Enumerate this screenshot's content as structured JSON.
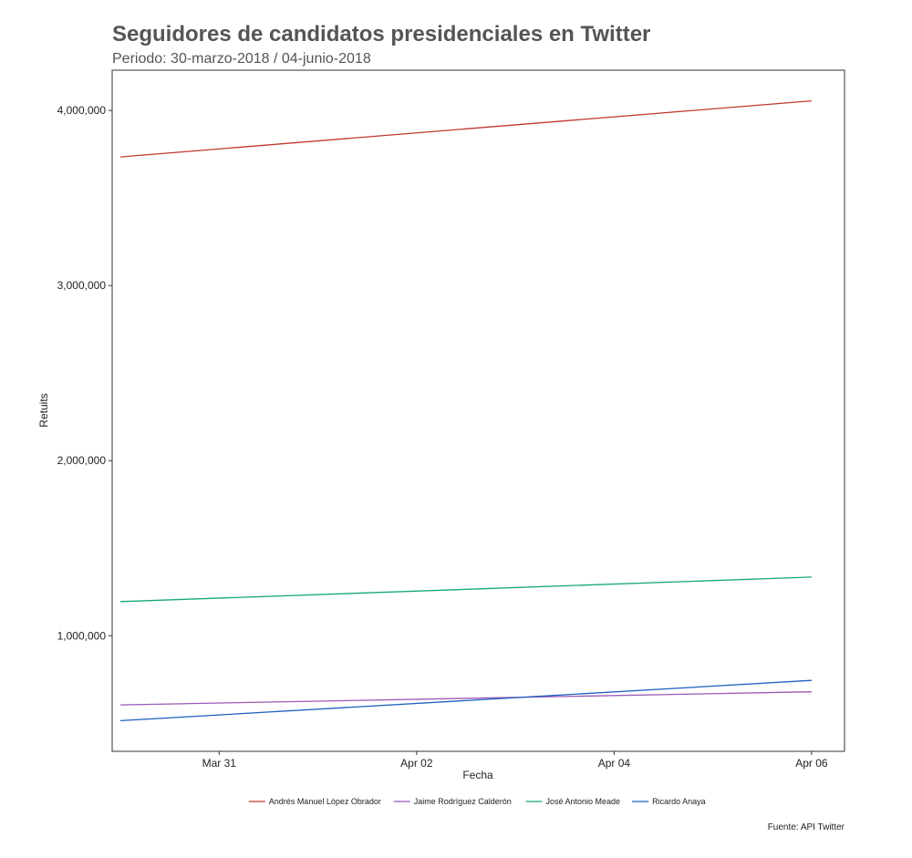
{
  "chart_data": {
    "type": "line",
    "title": "Seguidores de candidatos presidenciales en Twitter",
    "subtitle": "Periodo: 30-marzo-2018 / 04-junio-2018",
    "xlabel": "Fecha",
    "ylabel": "Retuits",
    "caption": "Fuente: API Twitter",
    "x": [
      "2018-03-30",
      "2018-04-06"
    ],
    "xlim": [
      "2018-03-29T22:00",
      "2018-04-06T08:00"
    ],
    "ylim": [
      340000,
      4230000
    ],
    "x_ticks": [
      {
        "date": "2018-03-31",
        "label": "Mar 31"
      },
      {
        "date": "2018-04-02",
        "label": "Apr 02"
      },
      {
        "date": "2018-04-04",
        "label": "Apr 04"
      },
      {
        "date": "2018-04-06",
        "label": "Apr 06"
      }
    ],
    "y_ticks": [
      {
        "value": 1000000,
        "label": "1,000,000"
      },
      {
        "value": 2000000,
        "label": "2,000,000"
      },
      {
        "value": 3000000,
        "label": "3,000,000"
      },
      {
        "value": 4000000,
        "label": "4,000,000"
      }
    ],
    "grid": false,
    "legend_position": "bottom",
    "series": [
      {
        "name": "Andrés Manuel López Obrador",
        "color": "#c0392b",
        "values": [
          3735000,
          4055000
        ]
      },
      {
        "name": "Jaime Rodríguez Calderón",
        "color": "#9b59b6",
        "values": [
          605000,
          680000
        ]
      },
      {
        "name": "José Antonio Meade",
        "color": "#16a77a",
        "values": [
          1195000,
          1335000
        ]
      },
      {
        "name": "Ricardo Anaya",
        "color": "#1f5fbf",
        "values": [
          515000,
          745000
        ]
      }
    ]
  }
}
